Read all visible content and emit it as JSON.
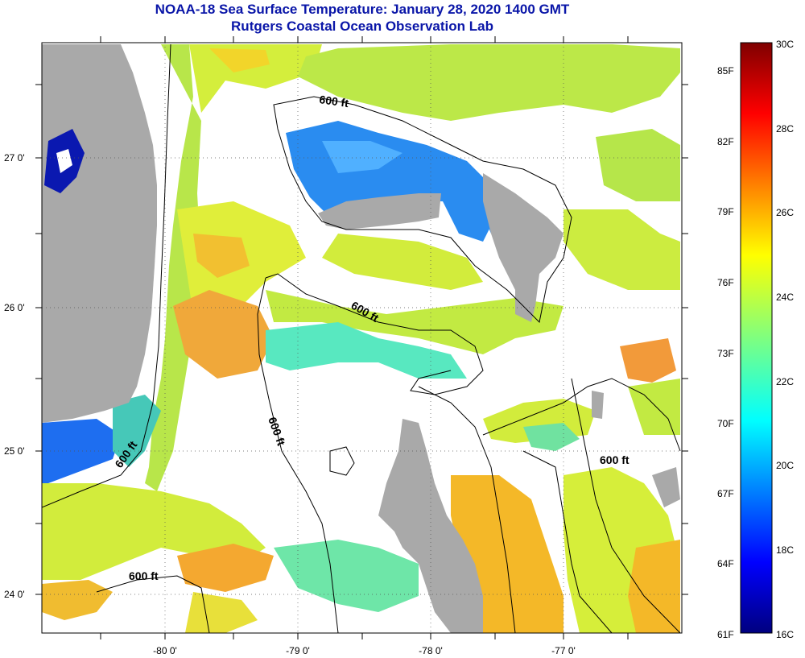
{
  "title_line1": "NOAA-18 Sea Surface Temperature:  January 28, 2020 1400 GMT",
  "title_line2": "Rutgers Coastal Ocean Observation Lab",
  "map": {
    "lon_labels": [
      "-80 0'",
      "-79 0'",
      "-78 0'",
      "-77 0'"
    ],
    "lat_labels": [
      "27 0'",
      "26 0'",
      "25 0'",
      "24 0'"
    ],
    "contour_labels": [
      "600 ft",
      "600 ft",
      "600 ft",
      "600 ft",
      "600 ft",
      "600 ft"
    ],
    "colors": {
      "land": "#a9a9a9",
      "cloud": "#ffffff",
      "frame": "#000000"
    }
  },
  "colorbar": {
    "fahrenheit_labels": [
      "85F",
      "82F",
      "79F",
      "76F",
      "73F",
      "70F",
      "67F",
      "64F",
      "61F"
    ],
    "celsius_labels": [
      "30C",
      "28C",
      "26C",
      "24C",
      "22C",
      "20C",
      "18C",
      "16C"
    ],
    "colormap": "jet",
    "range_c": [
      16,
      30
    ]
  }
}
